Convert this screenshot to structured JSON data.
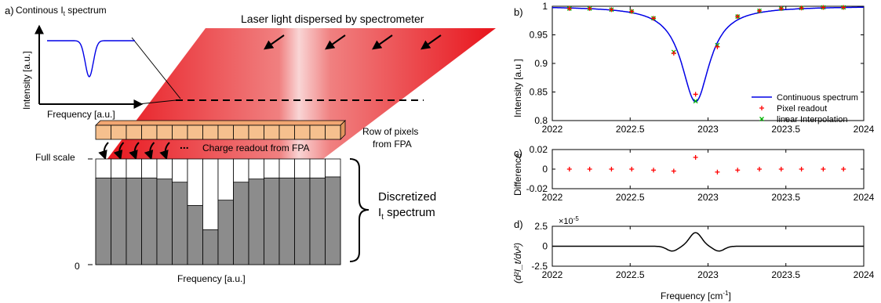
{
  "panel_a": {
    "panel_label": "a)",
    "inset_title_pre": "Continous I",
    "inset_title_sub": "t",
    "inset_title_post": " spectrum",
    "inset_ylabel": "Intensity [a.u.]",
    "inset_xlabel": "Frequency [a.u.]",
    "beam_label": "Laser light dispersed by spectrometer",
    "pixel_row_label_1": "Row of pixels",
    "pixel_row_label_2": "from FPA",
    "readout_ellipsis": "...",
    "readout_label": "Charge readout from FPA",
    "bar_ymax_label": "Full scale",
    "bar_ymin_label": "0",
    "bar_xlabel": "Frequency [a.u.]",
    "discretized_line1": "Discretized",
    "discretized_line2_pre": "I",
    "discretized_line2_sub": "t",
    "discretized_line2_post": " spectrum",
    "bar_fill_fractions": [
      0.82,
      0.82,
      0.82,
      0.82,
      0.81,
      0.78,
      0.56,
      0.33,
      0.61,
      0.78,
      0.81,
      0.82,
      0.82,
      0.82,
      0.82,
      0.83
    ],
    "colors": {
      "laser": "#e8141c",
      "pixel": "#f6c08e",
      "bar": "#8c8c8c",
      "curve": "#0000e6"
    }
  },
  "chart_data": [
    {
      "panel_label": "b)",
      "type": "line",
      "ylabel": "Intensity [a.u ]",
      "xlim": [
        2022,
        2024
      ],
      "ylim": [
        0.8,
        1.0
      ],
      "x_ticks": [
        "2022",
        "2022.5",
        "2023",
        "2023.5",
        "2024"
      ],
      "y_ticks": [
        "0.8",
        "0.85",
        "0.9",
        "0.95",
        "1"
      ],
      "legend": "bottom-right",
      "line_model": {
        "center": 2022.92,
        "depth": 0.167,
        "half_width": 0.11,
        "baseline": 1.0
      },
      "series": [
        {
          "name": "Continuous spectrum",
          "kind": "line",
          "color": "#0000e6"
        },
        {
          "name": "Pixel readout",
          "kind": "marker",
          "marker": "+",
          "color": "#ff0000",
          "x": [
            2022.11,
            2022.24,
            2022.38,
            2022.51,
            2022.65,
            2022.78,
            2022.92,
            2023.06,
            2023.19,
            2023.33,
            2023.47,
            2023.6,
            2023.74,
            2023.87
          ],
          "y": [
            0.996,
            0.996,
            0.994,
            0.991,
            0.979,
            0.918,
            0.846,
            0.929,
            0.982,
            0.992,
            0.996,
            0.997,
            0.998,
            0.998
          ]
        },
        {
          "name": "linear Interpolation",
          "kind": "marker",
          "marker": "x",
          "color": "#00b400",
          "x": [
            2022.11,
            2022.24,
            2022.38,
            2022.51,
            2022.65,
            2022.78,
            2022.92,
            2023.06,
            2023.19,
            2023.33,
            2023.47,
            2023.6,
            2023.74,
            2023.87
          ],
          "y": [
            0.996,
            0.996,
            0.994,
            0.991,
            0.979,
            0.92,
            0.834,
            0.932,
            0.982,
            0.992,
            0.996,
            0.997,
            0.998,
            0.998
          ]
        }
      ]
    },
    {
      "panel_label": "c)",
      "type": "scatter",
      "ylabel": "Difference",
      "xlim": [
        2022,
        2024
      ],
      "ylim": [
        -0.02,
        0.02
      ],
      "x_ticks": [
        "2022",
        "2022.5",
        "2023",
        "2023.5",
        "2024"
      ],
      "y_ticks": [
        "-0.02",
        "0",
        "0.02"
      ],
      "series": [
        {
          "marker": "+",
          "color": "#ff0000",
          "x": [
            2022.11,
            2022.24,
            2022.38,
            2022.51,
            2022.65,
            2022.78,
            2022.92,
            2023.06,
            2023.19,
            2023.33,
            2023.47,
            2023.6,
            2023.74,
            2023.87
          ],
          "y": [
            0.0,
            0.0,
            0.0,
            0.0,
            -0.001,
            -0.002,
            0.012,
            -0.003,
            -0.001,
            0.0,
            0.0,
            0.0,
            0.0,
            0.0
          ]
        }
      ]
    },
    {
      "panel_label": "d)",
      "type": "line",
      "ylabel": "(d²I_t/dν²)",
      "xlabel_pre": "Frequency [cm",
      "xlabel_sup": "-1",
      "xlabel_post": "]",
      "exponent_label": "×10",
      "exponent_value": "-5",
      "xlim": [
        2022,
        2024
      ],
      "ylim": [
        -2.5,
        2.5
      ],
      "x_ticks": [
        "2022",
        "2022.5",
        "2023",
        "2023.5",
        "2024"
      ],
      "y_ticks": [
        "-2.5",
        "0",
        "2.5"
      ],
      "curve_model": {
        "peak_center": 2022.92,
        "peak_value": 1.7,
        "peak_width": 0.055,
        "dip_left_center": 2022.77,
        "dip_right_center": 2023.07,
        "dip_value": -0.6,
        "dip_width": 0.05
      }
    }
  ]
}
